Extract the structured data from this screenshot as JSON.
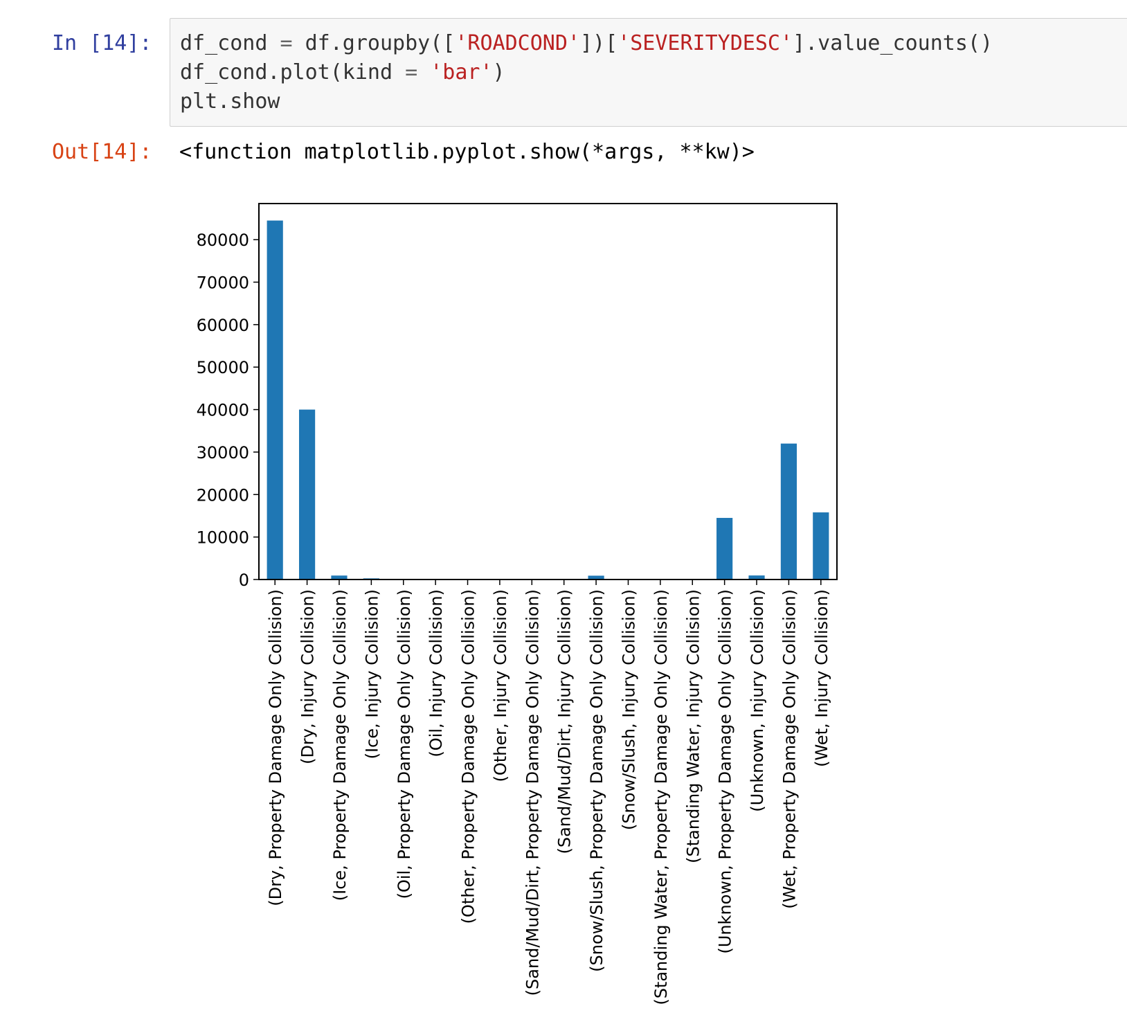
{
  "cell_in": {
    "prompt": "In [14]:",
    "lines": [
      [
        {
          "t": "df_cond ",
          "c": ""
        },
        {
          "t": "=",
          "c": "op"
        },
        {
          "t": " df.groupby([",
          "c": ""
        },
        {
          "t": "'ROADCOND'",
          "c": "str"
        },
        {
          "t": "])[",
          "c": ""
        },
        {
          "t": "'SEVERITYDESC'",
          "c": "str"
        },
        {
          "t": "].value_counts()",
          "c": ""
        }
      ],
      [
        {
          "t": "df_cond.plot(kind ",
          "c": ""
        },
        {
          "t": "=",
          "c": "op"
        },
        {
          "t": " ",
          "c": ""
        },
        {
          "t": "'bar'",
          "c": "str"
        },
        {
          "t": ")",
          "c": ""
        }
      ],
      [
        {
          "t": "plt.show",
          "c": ""
        }
      ]
    ]
  },
  "cell_out": {
    "prompt": "Out[14]:",
    "text": "<function matplotlib.pyplot.show(*args, **kw)>"
  },
  "chart_data": {
    "type": "bar",
    "title": "",
    "xlabel": "",
    "ylabel": "",
    "ylim": [
      0,
      88500
    ],
    "yticks": [
      0,
      10000,
      20000,
      30000,
      40000,
      50000,
      60000,
      70000,
      80000
    ],
    "grid": false,
    "bar_color": "#1f77b4",
    "categories": [
      "(Dry, Property Damage Only Collision)",
      "(Dry, Injury Collision)",
      "(Ice, Property Damage Only Collision)",
      "(Ice, Injury Collision)",
      "(Oil, Property Damage Only Collision)",
      "(Oil, Injury Collision)",
      "(Other, Property Damage Only Collision)",
      "(Other, Injury Collision)",
      "(Sand/Mud/Dirt, Property Damage Only Collision)",
      "(Sand/Mud/Dirt, Injury Collision)",
      "(Snow/Slush, Property Damage Only Collision)",
      "(Snow/Slush, Injury Collision)",
      "(Standing Water, Property Damage Only Collision)",
      "(Standing Water, Injury Collision)",
      "(Unknown, Property Damage Only Collision)",
      "(Unknown, Injury Collision)",
      "(Wet, Property Damage Only Collision)",
      "(Wet, Injury Collision)"
    ],
    "values": [
      84500,
      40000,
      930,
      270,
      40,
      20,
      90,
      40,
      40,
      20,
      900,
      160,
      90,
      30,
      14500,
      950,
      32000,
      15800
    ]
  }
}
